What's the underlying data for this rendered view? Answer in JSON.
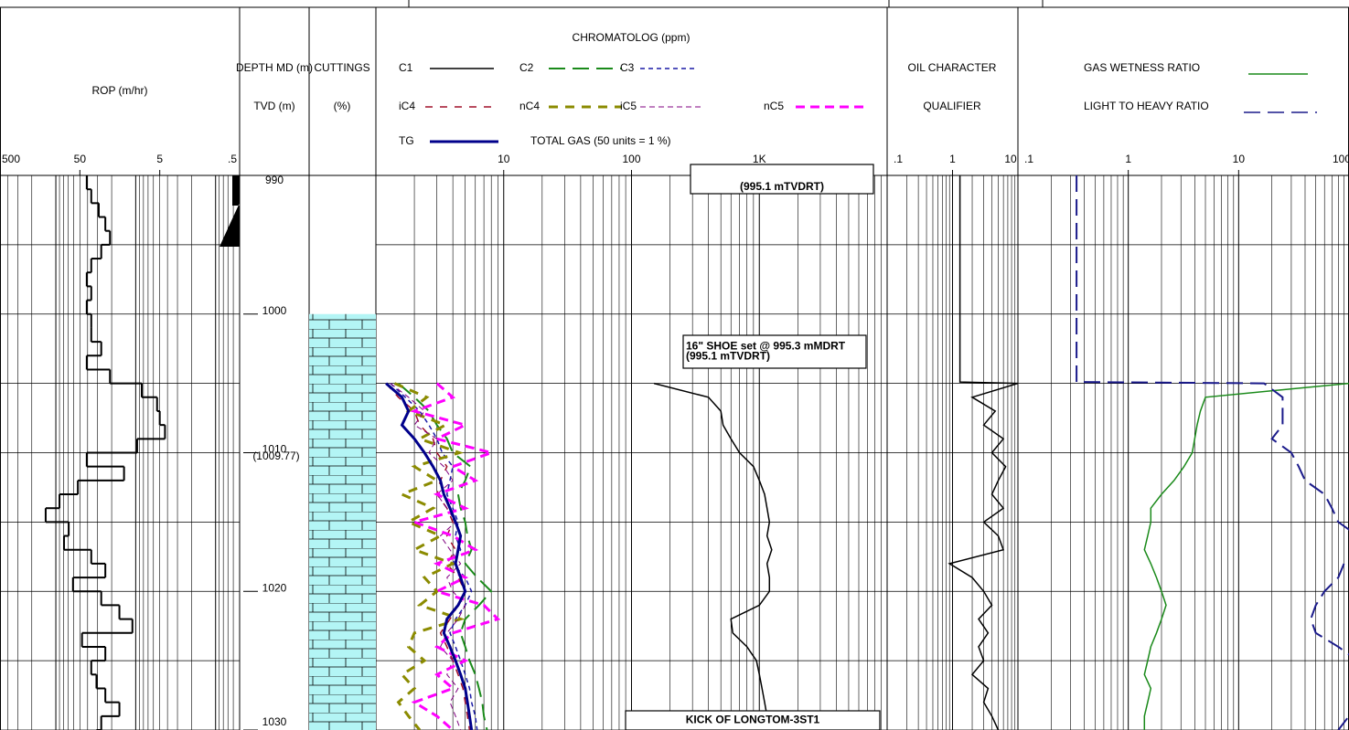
{
  "chart_data": [
    {
      "type": "step",
      "title": "ROP (m/hr)",
      "log": true,
      "xlim": [
        500,
        0.5
      ],
      "xticks": [
        500,
        50,
        5,
        {
          "value": 0.5,
          "label": ".5"
        }
      ],
      "color": "#000000",
      "depths": [
        990,
        991,
        992,
        993,
        994,
        995,
        996,
        997,
        998,
        999,
        1000,
        1001,
        1002,
        1003,
        1004,
        1005,
        1006,
        1007,
        1008,
        1009,
        1010,
        1011,
        1012,
        1013,
        1014,
        1015,
        1016,
        1017,
        1018,
        1019,
        1020,
        1021,
        1022,
        1023,
        1024,
        1025,
        1026,
        1027,
        1028,
        1029,
        1030
      ],
      "values": [
        41,
        36,
        29,
        24,
        21,
        27,
        36,
        41,
        36,
        41,
        36,
        36,
        27,
        41,
        21,
        8.4,
        5.4,
        5.0,
        4.3,
        9.6,
        41,
        14,
        53,
        90,
        134,
        69,
        79,
        36,
        24,
        61,
        27,
        16,
        11,
        47,
        24,
        36,
        31,
        24,
        16,
        27,
        31
      ]
    },
    {
      "type": "depth",
      "title": "DEPTH MD (m)",
      "subtitle": "TVD (m)",
      "ylim": [
        990,
        1030
      ],
      "yticks": [
        990,
        1000,
        1010,
        1020,
        1030
      ],
      "minor_yticks": [
        995,
        1005,
        1015,
        1025
      ],
      "tvd_labels": [
        {
          "value": 1009.77,
          "label": "(1009.77)"
        }
      ]
    },
    {
      "type": "lithology",
      "title": "CUTTINGS",
      "subtitle": "(%)",
      "color": "#b3f5f5",
      "intervals": [
        {
          "top": 1000,
          "base": 1030,
          "percent": 100
        }
      ]
    },
    {
      "type": "line",
      "title": "CHROMATOLOG (ppm)",
      "log": true,
      "xlim": [
        1,
        10000
      ],
      "xticks": [
        10,
        100,
        {
          "value": 1000,
          "label": "1K"
        }
      ],
      "note": "TOTAL GAS (50 units = 1 %)",
      "depths": [
        1005,
        1006,
        1007,
        1008,
        1009,
        1010,
        1011,
        1012,
        1013,
        1014,
        1015,
        1016,
        1017,
        1018,
        1019,
        1020,
        1021,
        1022,
        1023,
        1024,
        1025,
        1026,
        1027,
        1028,
        1029,
        1030
      ],
      "series": [
        {
          "name": "C1",
          "color": "#000000",
          "width": 1.5,
          "dash": "",
          "values": [
            150,
            400,
            500,
            520,
            600,
            700,
            900,
            1000,
            1100,
            1150,
            1200,
            1150,
            1250,
            1150,
            1200,
            1200,
            1000,
            600,
            620,
            800,
            950,
            1000,
            1050,
            1100,
            1150,
            1200
          ]
        },
        {
          "name": "C2",
          "color": "#1a8a1a",
          "width": 2,
          "dash": "18,8",
          "values": [
            1.5,
            2.0,
            2.6,
            3.0,
            3.6,
            4.0,
            5.5,
            5.0,
            4.4,
            4.6,
            5.0,
            5.2,
            5.6,
            5.0,
            6.2,
            8.0,
            6.4,
            5.0,
            4.6,
            5.0,
            5.4,
            6.0,
            6.4,
            6.8,
            7.0,
            7.4
          ]
        },
        {
          "name": "C3",
          "color": "#1a1aa6",
          "width": 1.5,
          "dash": "5,4",
          "values": [
            1.3,
            1.7,
            2.2,
            2.6,
            3.0,
            3.3,
            4.0,
            3.8,
            3.6,
            4.0,
            4.4,
            4.2,
            4.6,
            4.0,
            5.0,
            5.6,
            5.0,
            4.2,
            3.8,
            4.2,
            4.6,
            5.0,
            5.4,
            5.6,
            6.0,
            6.2
          ]
        },
        {
          "name": "iC4",
          "color": "#a0102a",
          "width": 1.5,
          "dash": "8,8",
          "values": [
            1.2,
            1.5,
            2.0,
            2.2,
            2.8,
            3.0,
            3.6,
            3.2,
            3.0,
            3.6,
            4.0,
            3.6,
            4.2,
            3.6,
            4.4,
            5.0,
            4.4,
            3.8,
            3.2,
            3.6,
            4.0,
            4.4,
            4.8,
            5.0,
            5.2,
            5.4
          ]
        },
        {
          "name": "nC4",
          "color": "#8b8b00",
          "width": 3,
          "dash": "10,8",
          "values": [
            1.4,
            2.5,
            1.8,
            3.5,
            2.2,
            4.5,
            2.0,
            3.0,
            1.6,
            2.8,
            1.8,
            3.2,
            2.0,
            4.0,
            2.4,
            3.0,
            2.2,
            4.6,
            2.0,
            1.8,
            2.4,
            1.6,
            2.0,
            1.5,
            1.8,
            2.2
          ]
        },
        {
          "name": "iC5",
          "color": "#800080",
          "width": 1,
          "dash": "6,4",
          "values": [
            1.3,
            1.8,
            2.4,
            2.0,
            3.0,
            2.6,
            3.4,
            4.0,
            3.0,
            3.6,
            4.2,
            3.2,
            3.8,
            4.6,
            3.6,
            4.0,
            5.0,
            4.4,
            3.6,
            3.2,
            4.0,
            3.6,
            4.4,
            3.8,
            4.2,
            4.6
          ]
        },
        {
          "name": "nC5",
          "color": "#ff00ff",
          "width": 3,
          "dash": "10,6",
          "values": [
            3,
            4,
            2,
            5,
            3,
            8,
            4,
            6,
            3,
            5,
            2,
            4,
            6,
            3,
            5,
            3,
            7,
            9,
            4,
            3,
            5,
            3,
            4,
            2,
            3,
            4
          ]
        },
        {
          "name": "TG",
          "color": "#00008b",
          "width": 3,
          "dash": "",
          "values": [
            1.2,
            1.6,
            1.8,
            1.6,
            2.0,
            2.4,
            2.8,
            3.2,
            3.4,
            3.8,
            4.2,
            4.6,
            4.4,
            4.2,
            4.6,
            5.0,
            4.4,
            3.6,
            3.4,
            3.8,
            4.2,
            4.6,
            5.0,
            5.2,
            5.4,
            5.6
          ]
        }
      ],
      "annotations": [
        {
          "lines": [
            "(995.1 mTVDRT)"
          ]
        },
        {
          "lines": [
            "16\" SHOE set @ 995.3 mMDRT",
            "(995.1 mTVDRT)"
          ]
        },
        {
          "lines": [
            "KICK OF LONGTOM-3ST1"
          ]
        }
      ]
    },
    {
      "type": "line",
      "title": "OIL CHARACTER",
      "subtitle": "QUALIFIER",
      "log": true,
      "xlim": [
        0.1,
        10
      ],
      "xticks": [
        {
          "value": 0.1,
          "label": ".1"
        },
        1,
        10
      ],
      "series": [
        {
          "color": "#000000",
          "width": 1.5,
          "dash": "",
          "depths": [
            990,
            1004.9,
            1005,
            1006,
            1007,
            1008,
            1009,
            1010,
            1011,
            1012,
            1013,
            1014,
            1015,
            1016,
            1017,
            1018,
            1019,
            1020,
            1021,
            1022,
            1023,
            1024,
            1025,
            1026,
            1027,
            1028,
            1029,
            1030
          ],
          "values": [
            1.3,
            1.3,
            10,
            2.0,
            4.5,
            3.0,
            6.0,
            4.0,
            6.5,
            5.0,
            4.0,
            6.0,
            3.0,
            5.0,
            6.0,
            0.9,
            2.0,
            3.0,
            4.0,
            2.5,
            3.5,
            2.5,
            3.0,
            2.0,
            3.5,
            3.0,
            4.0,
            5.0
          ]
        }
      ]
    },
    {
      "type": "line",
      "log": true,
      "xlim": [
        0.1,
        100
      ],
      "xticks": [
        {
          "value": 0.1,
          "label": ".1"
        },
        1,
        10,
        100
      ],
      "series": [
        {
          "name": "GAS WETNESS RATIO",
          "color": "#1a8a1a",
          "width": 1.5,
          "dash": "",
          "depths": [
            1005,
            1006,
            1007,
            1008,
            1009,
            1010,
            1011,
            1012,
            1013,
            1014,
            1015,
            1016,
            1017,
            1018,
            1019,
            1020,
            1021,
            1022,
            1023,
            1024,
            1025,
            1026,
            1027,
            1028,
            1029,
            1030
          ],
          "values": [
            100,
            5,
            4.5,
            4.2,
            4.0,
            3.8,
            3.2,
            2.6,
            2.0,
            1.6,
            1.6,
            1.5,
            1.4,
            1.6,
            1.8,
            2.0,
            2.2,
            2.0,
            1.8,
            1.6,
            1.5,
            1.4,
            1.6,
            1.5,
            1.4,
            1.4
          ]
        },
        {
          "name": "LIGHT TO HEAVY RATIO",
          "color": "#1a1a8a",
          "width": 2,
          "dash": "18,8",
          "depths": [
            990,
            1004.9,
            1005,
            1006,
            1007,
            1008,
            1009,
            1010,
            1011,
            1012,
            1013,
            1014,
            1015,
            1016,
            1017,
            1018,
            1019,
            1020,
            1021,
            1022,
            1023,
            1024,
            1025,
            1026,
            1027,
            1028,
            1029,
            1030
          ],
          "values": [
            0.34,
            0.34,
            17,
            25,
            25,
            25,
            20,
            30,
            35,
            40,
            60,
            70,
            80,
            120,
            150,
            90,
            80,
            60,
            50,
            45,
            50,
            80,
            120,
            150,
            200,
            150,
            100,
            80
          ]
        }
      ]
    }
  ]
}
